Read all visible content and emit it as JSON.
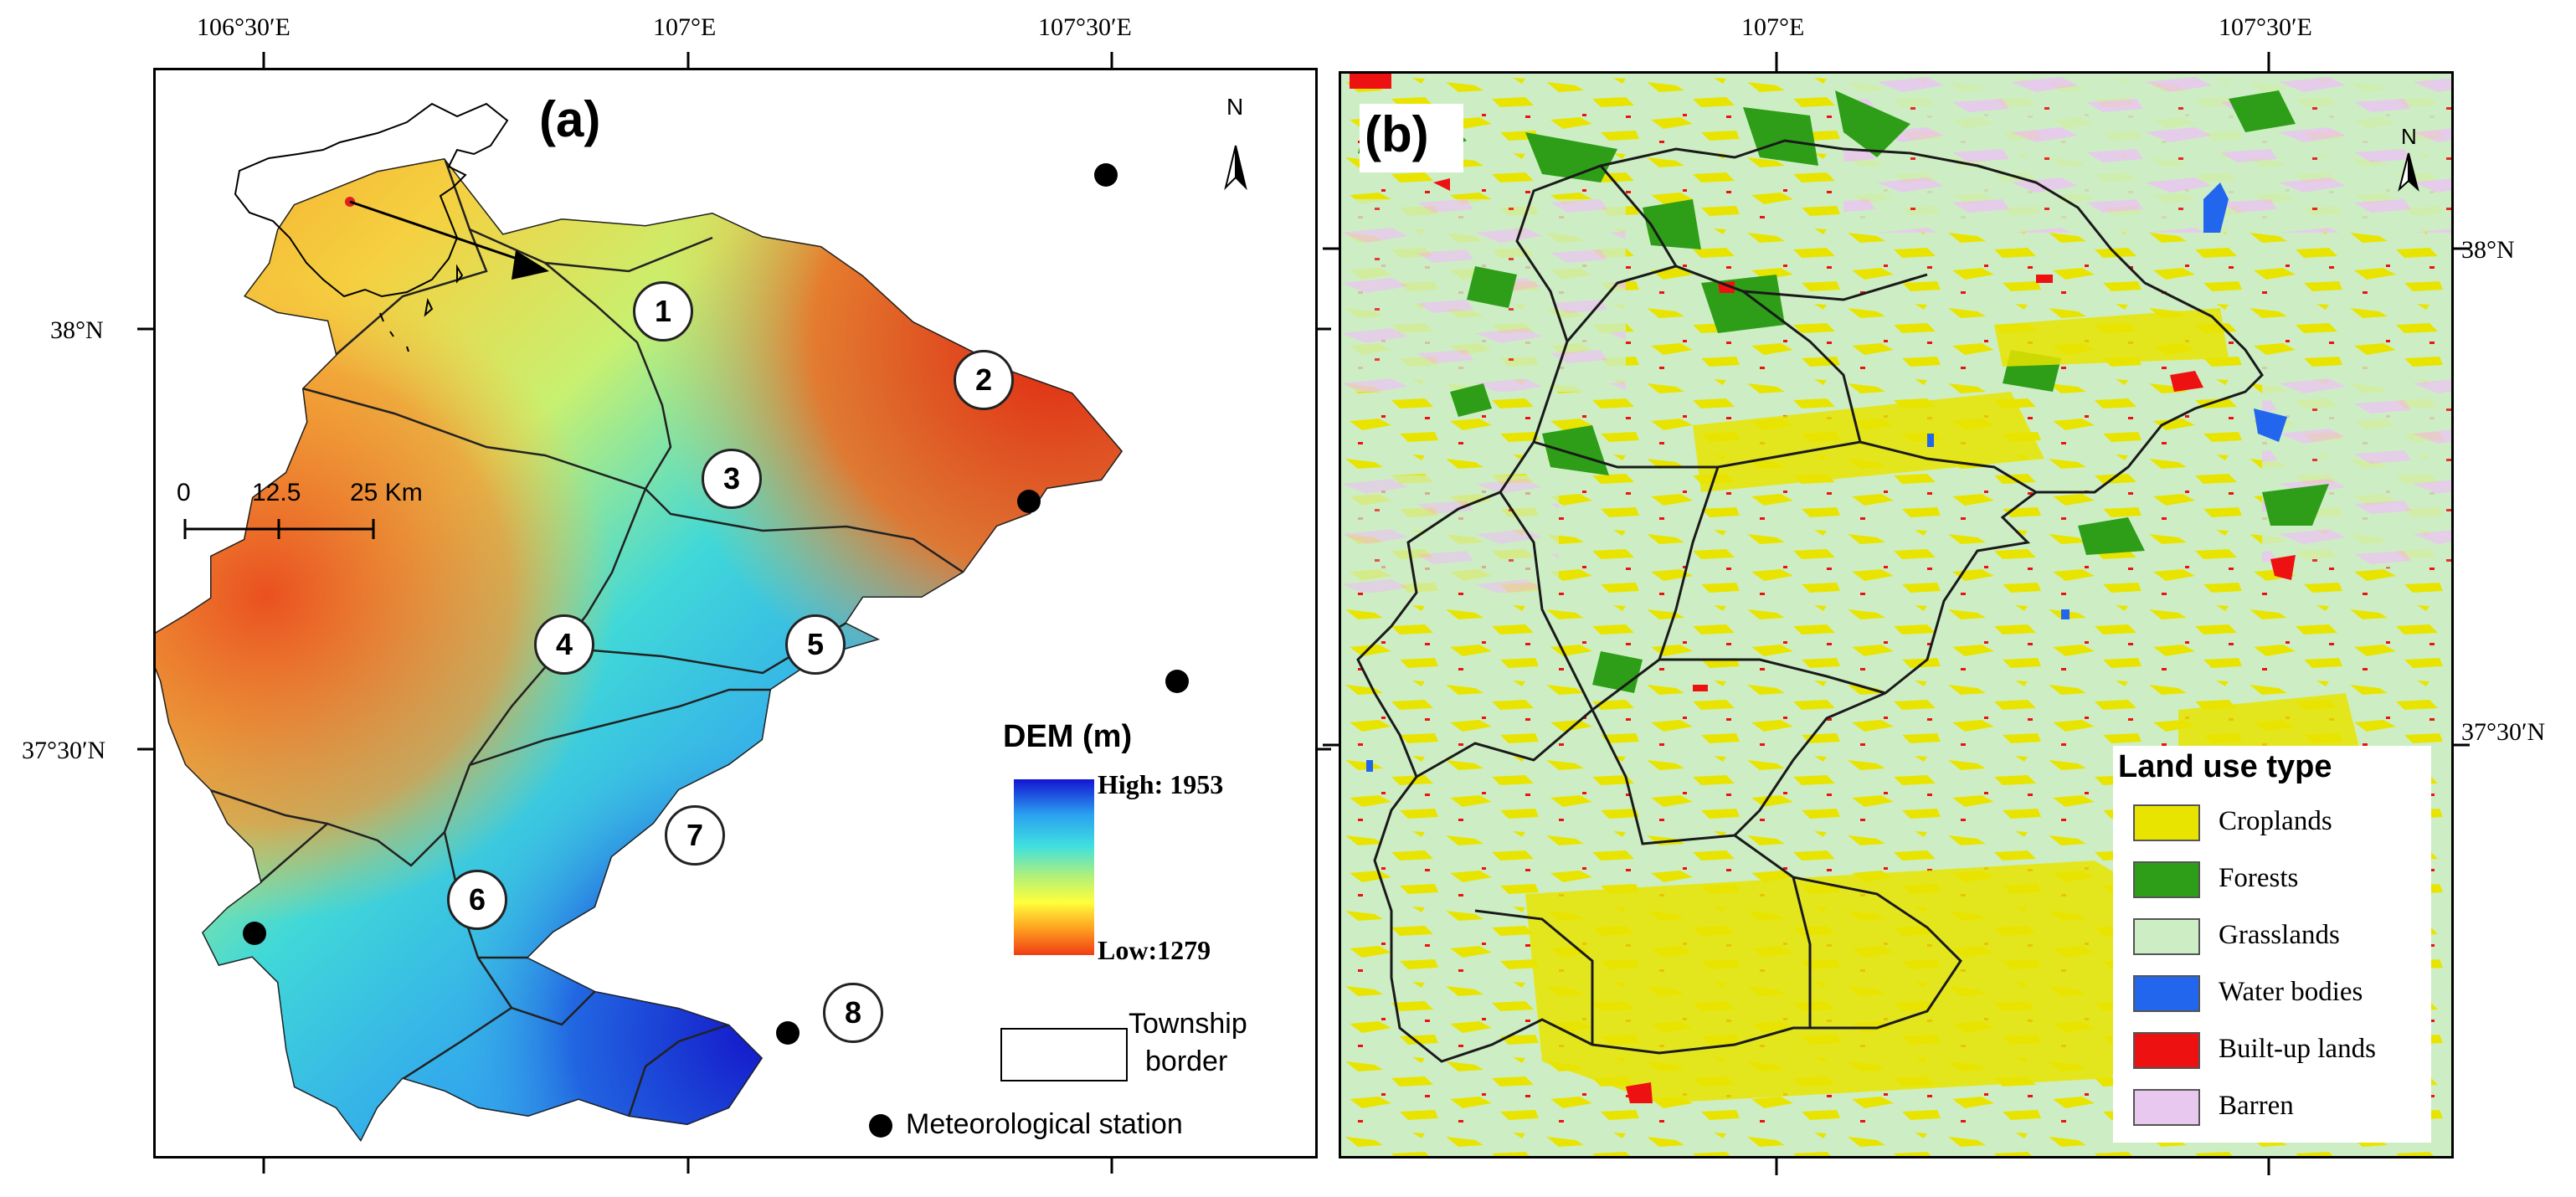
{
  "axes": {
    "a_top": [
      "106°30′E",
      "107°E",
      "107°30′E"
    ],
    "a_left": [
      "38°N",
      "37°30′N"
    ],
    "b_top": [
      "107°E",
      "107°30′E"
    ],
    "b_right": [
      "38°N",
      "37°30′N"
    ]
  },
  "panel_a": {
    "title": "(a)",
    "north_label": "N",
    "zones": [
      "1",
      "2",
      "3",
      "4",
      "5",
      "6",
      "7",
      "8"
    ],
    "scale_bar": {
      "labels": [
        "0",
        "12.5",
        "25 Km"
      ]
    },
    "dem_legend": {
      "title": "DEM (m)",
      "high": "High: 1953",
      "low": "Low:1279",
      "colors": [
        "#1414d2",
        "#2aa0f0",
        "#3fe0e0",
        "#b0f07a",
        "#ffff3c",
        "#ffa020",
        "#f03c14"
      ]
    },
    "township_legend": {
      "line1": "Township",
      "line2": "border"
    },
    "station_legend": "Meteorological station"
  },
  "panel_b": {
    "title": "(b)",
    "north_label": "N",
    "legend": {
      "title": "Land use type",
      "items": [
        {
          "label": "Croplands",
          "color": "#e8e400"
        },
        {
          "label": "Forests",
          "color": "#2e9e18"
        },
        {
          "label": "Grasslands",
          "color": "#cdeec4"
        },
        {
          "label": "Water bodies",
          "color": "#2266ee"
        },
        {
          "label": "Built-up lands",
          "color": "#ee1111"
        },
        {
          "label": "Barren",
          "color": "#e8c8ee"
        }
      ]
    }
  }
}
